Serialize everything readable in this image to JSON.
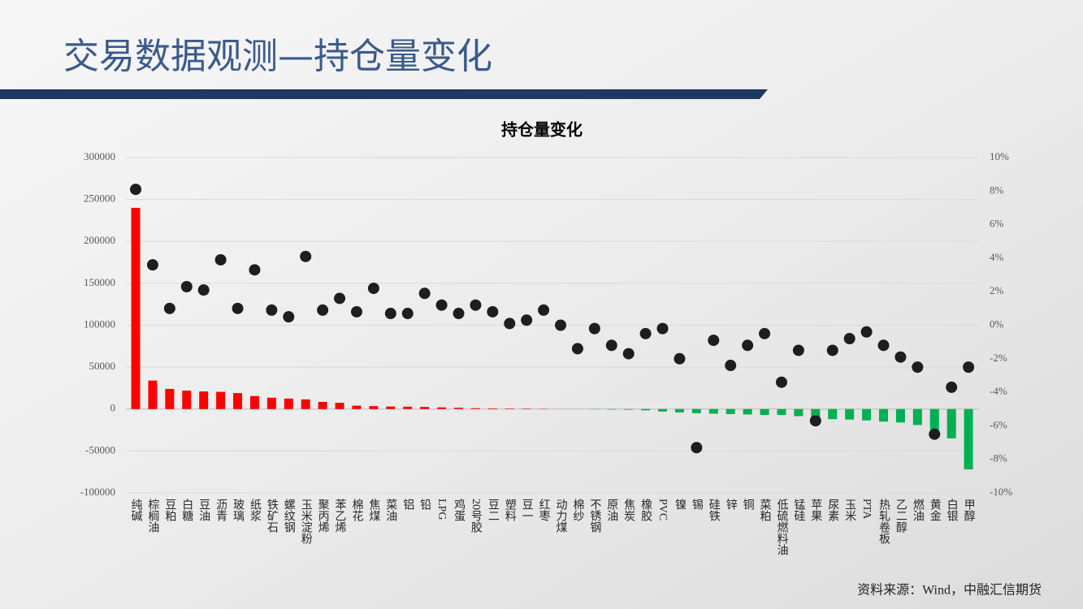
{
  "header": {
    "title": "交易数据观测—持仓量变化"
  },
  "footer": {
    "source": "资料来源：Wind，中融汇信期货"
  },
  "chart_data": {
    "type": "bar",
    "title": "持仓量变化",
    "categories": [
      "纯碱",
      "棕榈油",
      "豆粕",
      "白糖",
      "豆油",
      "沥青",
      "玻璃",
      "纸浆",
      "铁矿石",
      "螺纹钢",
      "玉米淀粉",
      "聚丙烯",
      "苯乙烯",
      "棉花",
      "焦煤",
      "菜油",
      "铝",
      "铅",
      "LPG",
      "鸡蛋",
      "20号胶",
      "豆二",
      "塑料",
      "豆一",
      "红枣",
      "动力煤",
      "棉纱",
      "不锈钢",
      "原油",
      "焦炭",
      "橡胶",
      "PVC",
      "镍",
      "锡",
      "硅铁",
      "锌",
      "铜",
      "菜粕",
      "低硫燃料油",
      "锰硅",
      "苹果",
      "尿素",
      "玉米",
      "PTA",
      "热轧卷板",
      "乙二醇",
      "燃油",
      "黄金",
      "白银",
      "甲醇"
    ],
    "series": [
      {
        "type": "bar",
        "color": "#ff0000",
        "negative_color": "#00b050",
        "values": [
          240000,
          34000,
          24000,
          22000,
          21000,
          20500,
          19000,
          15500,
          13500,
          12500,
          11500,
          8500,
          7500,
          4000,
          3500,
          3000,
          2800,
          2500,
          2000,
          1500,
          1000,
          800,
          600,
          500,
          300,
          100,
          -100,
          -300,
          -500,
          -800,
          -1500,
          -3000,
          -4000,
          -5000,
          -5500,
          -6000,
          -6500,
          -7000,
          -7000,
          -8500,
          -11000,
          -12000,
          -12500,
          -13500,
          -15000,
          -16000,
          -19000,
          -25000,
          -35000,
          -72000
        ]
      },
      {
        "type": "scatter",
        "axis": "y2",
        "color": "#1e1e1e",
        "values": [
          8.1,
          3.6,
          1.0,
          2.3,
          2.1,
          3.9,
          1.0,
          3.3,
          0.9,
          0.5,
          4.1,
          0.9,
          1.6,
          0.8,
          2.2,
          0.7,
          0.7,
          1.9,
          1.2,
          0.7,
          1.2,
          0.8,
          0.1,
          0.3,
          0.9,
          0,
          -1.4,
          -0.2,
          -1.2,
          -1.7,
          -0.5,
          -0.2,
          -2.0,
          -7.3,
          -0.9,
          -2.4,
          -1.2,
          -0.5,
          -3.4,
          -1.5,
          -5.7,
          -1.5,
          -0.8,
          -0.4,
          -1.2,
          -1.9,
          -2.5,
          -6.5,
          -3.7,
          -2.5
        ]
      }
    ],
    "ylim": [
      -100000,
      300000
    ],
    "yticks": [
      -100000,
      -50000,
      0,
      50000,
      100000,
      150000,
      200000,
      250000,
      300000
    ],
    "y2lim": [
      -10,
      10
    ],
    "y2ticks": [
      {
        "value": -10,
        "label": "-10%"
      },
      {
        "value": -8,
        "label": "-8%"
      },
      {
        "value": -6,
        "label": "-6%"
      },
      {
        "value": -4,
        "label": "-4%"
      },
      {
        "value": -2,
        "label": "-2%"
      },
      {
        "value": 0,
        "label": "0%"
      },
      {
        "value": 2,
        "label": "2%"
      },
      {
        "value": 4,
        "label": "4%"
      },
      {
        "value": 6,
        "label": "6%"
      },
      {
        "value": 8,
        "label": "8%"
      },
      {
        "value": 10,
        "label": "10%"
      }
    ],
    "grid": true
  }
}
